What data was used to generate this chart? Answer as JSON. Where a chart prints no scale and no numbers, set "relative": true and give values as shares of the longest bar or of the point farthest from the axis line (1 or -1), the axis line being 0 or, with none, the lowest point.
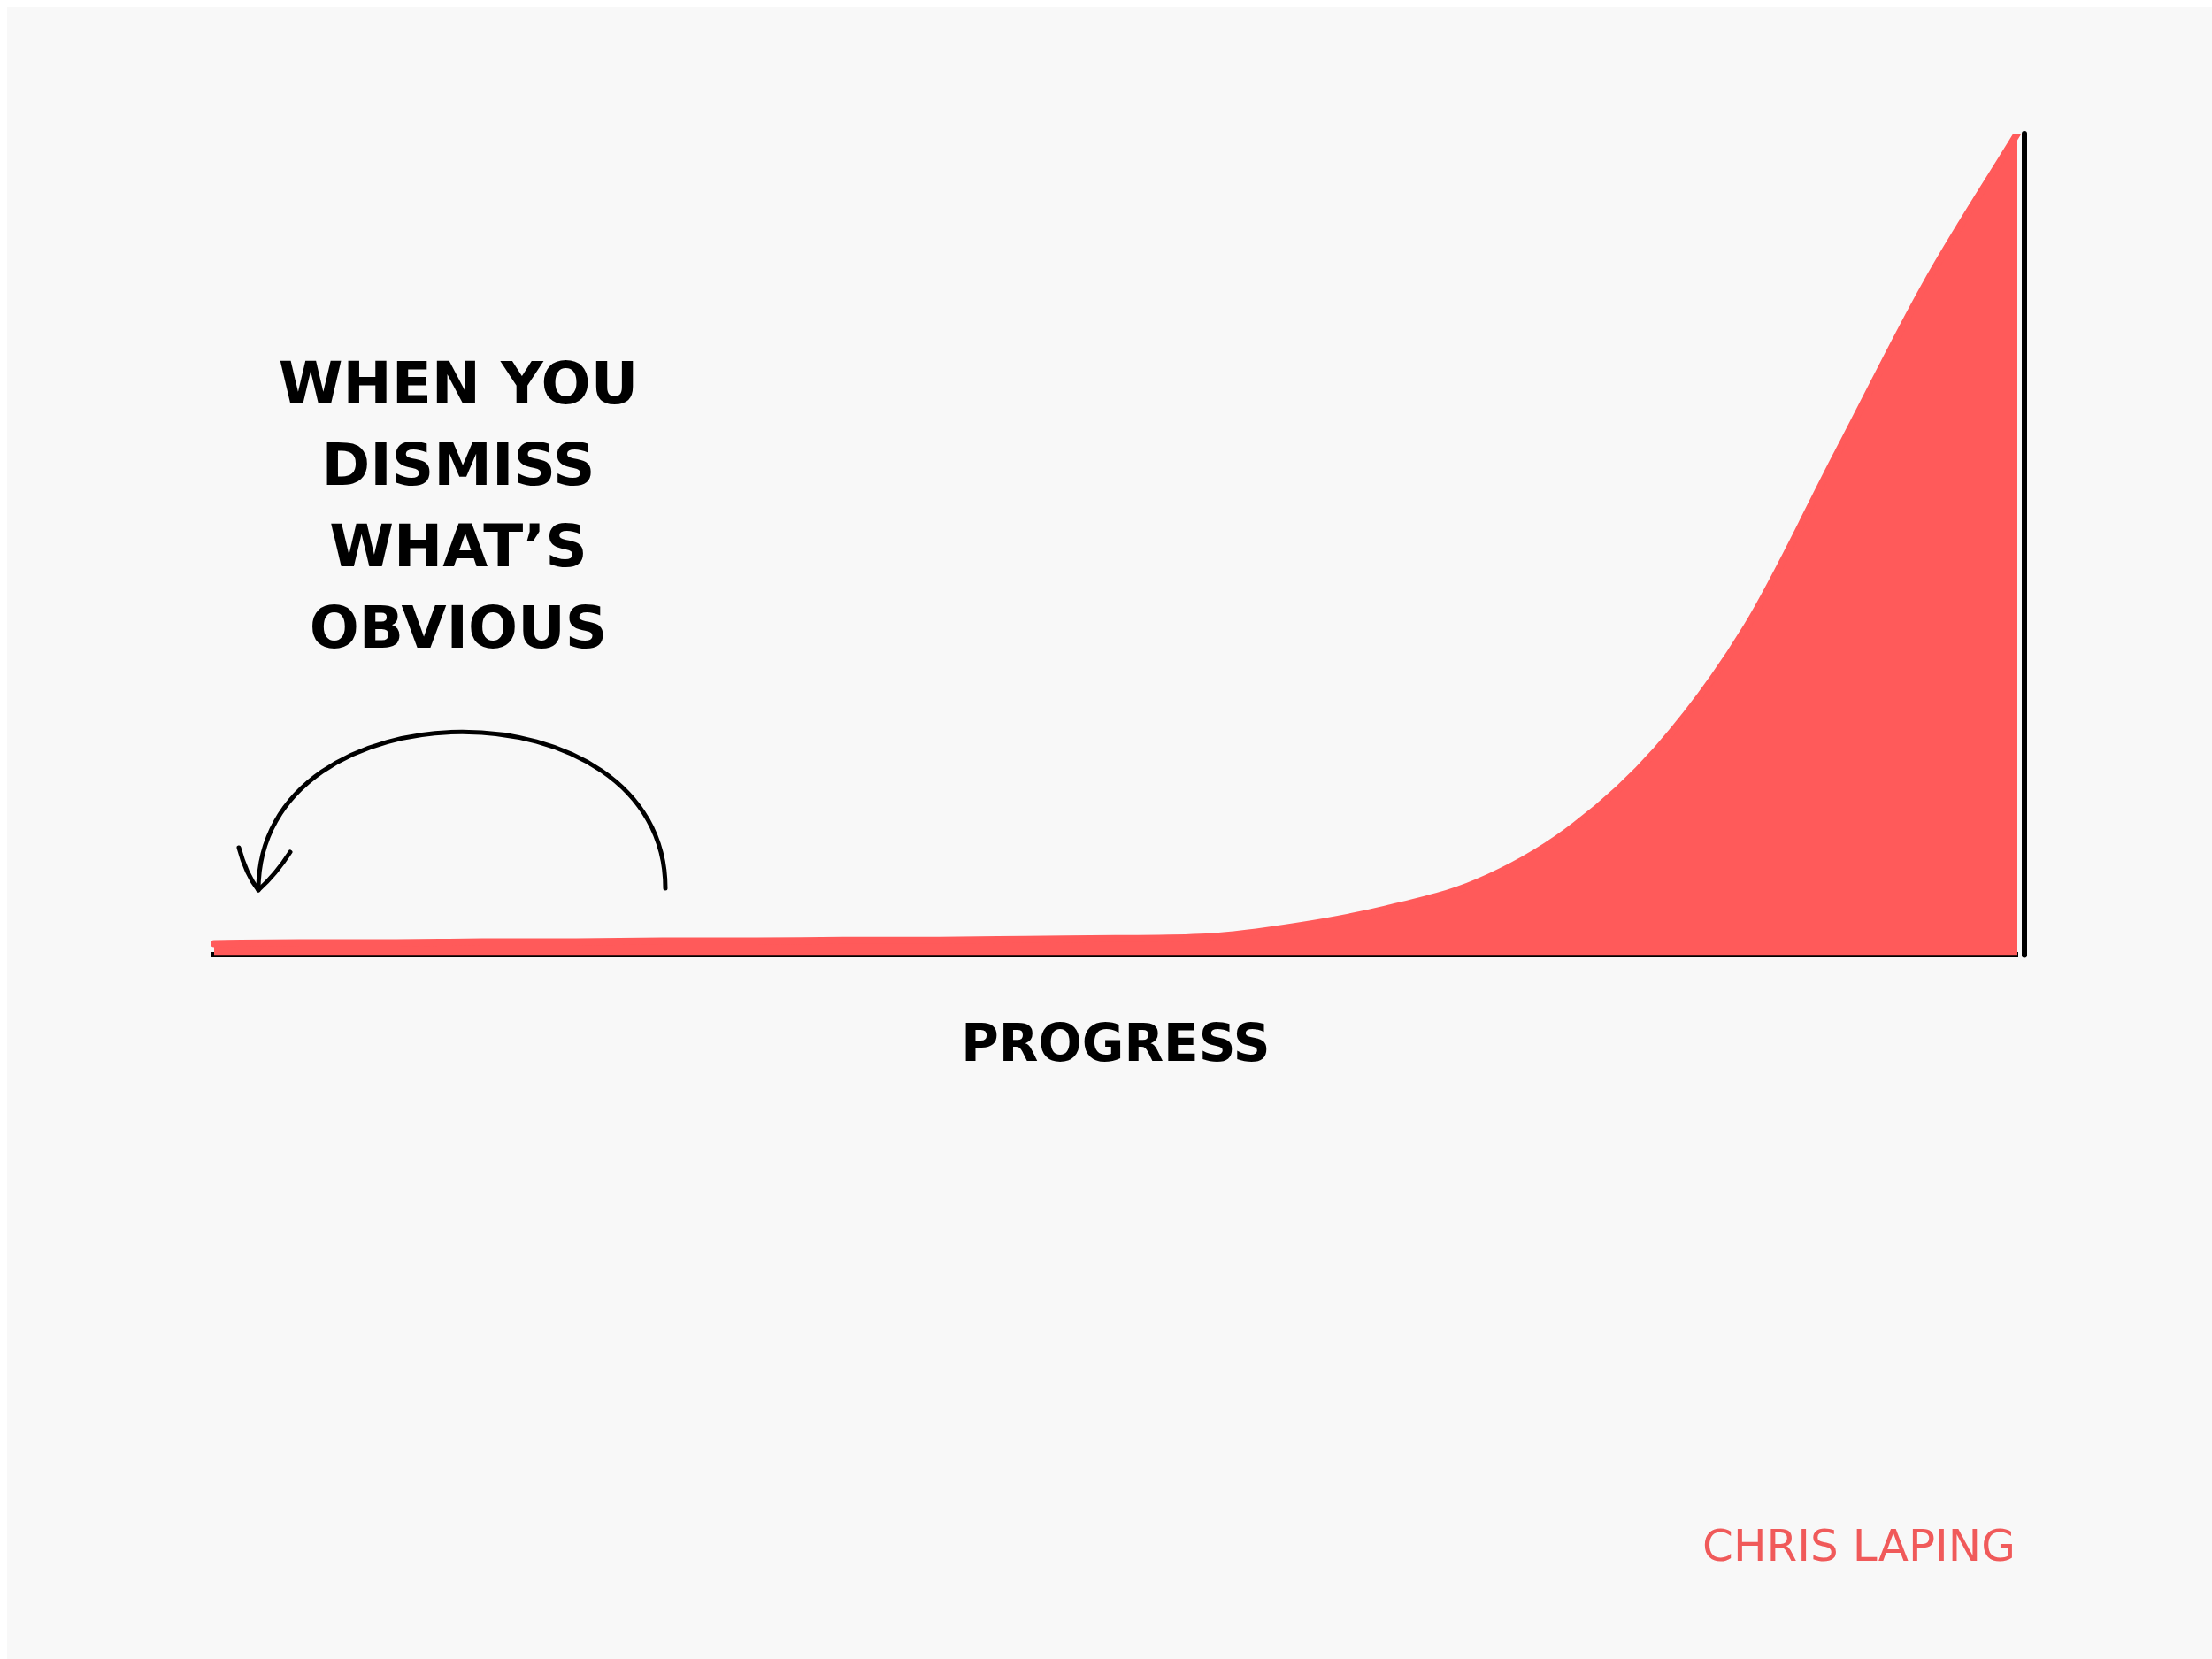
{
  "chart_data": {
    "type": "area",
    "relative": true,
    "xlabel": "PROGRESS",
    "categories": [
      null,
      null,
      null,
      null,
      null,
      null,
      null,
      null,
      null,
      null,
      null,
      null,
      null,
      null,
      null,
      null,
      null,
      null,
      null,
      null,
      null
    ],
    "series": [
      {
        "color": "#ff5a5a",
        "values": [
          0.014,
          0.015,
          0.015,
          0.016,
          0.016,
          0.017,
          0.017,
          0.018,
          0.018,
          0.019,
          0.02,
          0.022,
          0.035,
          0.056,
          0.088,
          0.15,
          0.25,
          0.4,
          0.61,
          0.82,
          1
        ]
      }
    ],
    "annotations": [
      "WHEN YOU DISMISS WHAT’S OBVIOUS",
      "CHRIS LAPING"
    ],
    "grid": false,
    "legend": false
  }
}
